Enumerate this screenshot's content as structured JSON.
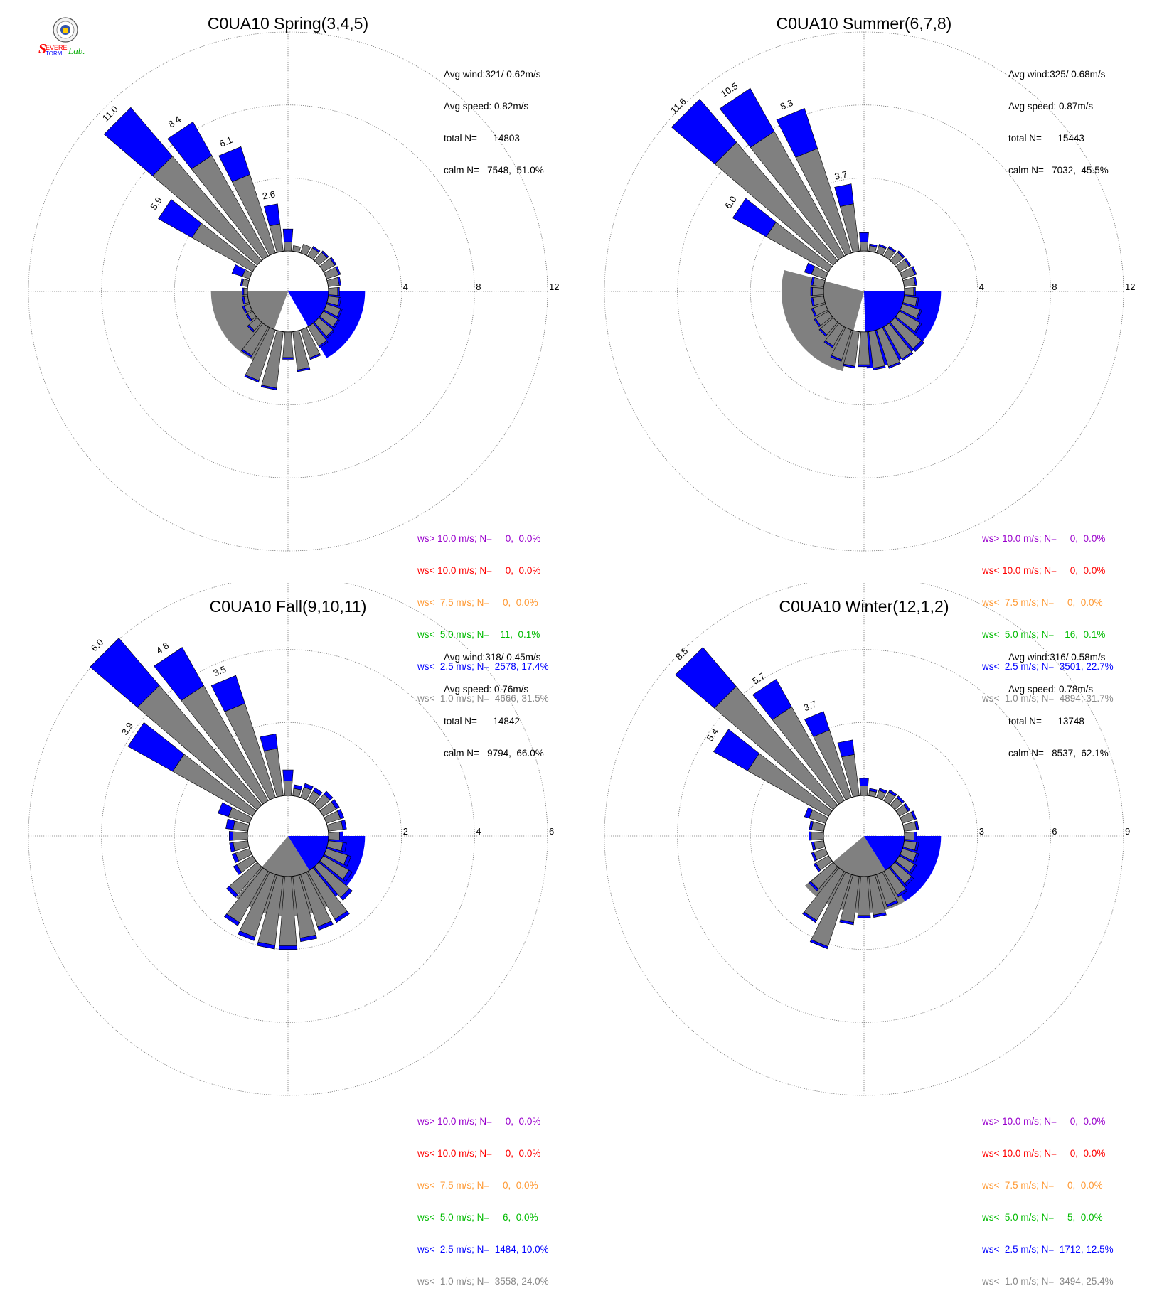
{
  "logo": {
    "icon": "severe-storm-lab-logo",
    "colors": {
      "severe": "#ff0000",
      "storm": "#0000ff",
      "lab": "#00aa00"
    }
  },
  "colors": {
    "calm_bar": "#808080",
    "speed_bar": "#0000ff",
    "ring": "#888888",
    "legend": [
      "#9900cc",
      "#ff0000",
      "#ff9933",
      "#00bb00",
      "#0000ff",
      "#888888"
    ]
  },
  "panels": [
    {
      "title": "C0UA10 Spring(3,4,5)",
      "stats": [
        "Avg wind:321/ 0.62m/s",
        "Avg speed: 0.82m/s",
        "total N=      14803",
        "calm N=   7548,  51.0%"
      ],
      "legend": [
        "ws> 10.0 m/s; N=     0,  0.0%",
        "ws< 10.0 m/s; N=     0,  0.0%",
        "ws<  7.5 m/s; N=     0,  0.0%",
        "ws<  5.0 m/s; N=    11,  0.1%",
        "ws<  2.5 m/s; N=  2578, 17.4%",
        "ws<  1.0 m/s; N=  4666, 31.5%"
      ],
      "chart_data": {
        "type": "wind-rose",
        "rings": [
          4,
          8,
          12
        ],
        "ring_labels": [
          "4",
          "8",
          "12"
        ],
        "rmax": 12,
        "labels": [
          {
            "dir": 315,
            "value": "11.0"
          },
          {
            "dir": 326.25,
            "value": "8.4"
          },
          {
            "dir": 337.5,
            "value": "6.1"
          },
          {
            "dir": 348.75,
            "value": "2.6"
          },
          {
            "dir": 303.75,
            "value": "5.9"
          }
        ],
        "dirs": [
          0,
          11.25,
          22.5,
          33.75,
          45,
          56.25,
          67.5,
          78.75,
          90,
          101.25,
          112.5,
          123.75,
          135,
          146.25,
          157.5,
          168.75,
          180,
          191.25,
          202.5,
          213.75,
          225,
          236.25,
          247.5,
          258.75,
          270,
          281.25,
          292.5,
          303.75,
          315,
          326.25,
          337.5,
          348.75
        ],
        "calm": [
          0.5,
          0.3,
          0.5,
          0.5,
          0.6,
          0.7,
          0.7,
          0.6,
          0.5,
          0.6,
          0.8,
          0.9,
          1.0,
          1.2,
          1.6,
          2.1,
          1.4,
          3.1,
          2.9,
          1.8,
          0.6,
          0.3,
          0.3,
          0.2,
          0.2,
          0.3,
          0.4,
          3.8,
          7.5,
          6.3,
          4.5,
          1.5
        ],
        "total": [
          1.2,
          0.3,
          0.5,
          0.6,
          0.7,
          0.8,
          0.8,
          0.7,
          0.6,
          0.7,
          0.9,
          1.0,
          1.1,
          1.3,
          1.7,
          2.2,
          1.5,
          3.2,
          3.0,
          1.9,
          0.7,
          0.4,
          0.4,
          0.3,
          0.3,
          0.4,
          1.0,
          5.9,
          11.0,
          8.4,
          6.1,
          2.6
        ],
        "calm_sector": {
          "from_deg": 200,
          "to_deg": 270,
          "value": 2.0
        },
        "speed_sector": {
          "from_deg": 90,
          "to_deg": 150,
          "value": 2.0
        }
      }
    },
    {
      "title": "C0UA10 Summer(6,7,8)",
      "stats": [
        "Avg wind:325/ 0.68m/s",
        "Avg speed: 0.87m/s",
        "total N=      15443",
        "calm N=   7032,  45.5%"
      ],
      "legend": [
        "ws> 10.0 m/s; N=     0,  0.0%",
        "ws< 10.0 m/s; N=     0,  0.0%",
        "ws<  7.5 m/s; N=     0,  0.0%",
        "ws<  5.0 m/s; N=    16,  0.1%",
        "ws<  2.5 m/s; N=  3501, 22.7%",
        "ws<  1.0 m/s; N=  4894, 31.7%"
      ],
      "chart_data": {
        "type": "wind-rose",
        "rings": [
          4,
          8,
          12
        ],
        "ring_labels": [
          "4",
          "8",
          "12"
        ],
        "rmax": 12,
        "labels": [
          {
            "dir": 315,
            "value": "11.6"
          },
          {
            "dir": 326.25,
            "value": "10.5"
          },
          {
            "dir": 337.5,
            "value": "8.3"
          },
          {
            "dir": 348.75,
            "value": "3.7"
          },
          {
            "dir": 303.75,
            "value": "6.0"
          }
        ],
        "dirs": [
          0,
          11.25,
          22.5,
          33.75,
          45,
          56.25,
          67.5,
          78.75,
          90,
          101.25,
          112.5,
          123.75,
          135,
          146.25,
          157.5,
          168.75,
          180,
          191.25,
          202.5,
          213.75,
          225,
          236.25,
          247.5,
          258.75,
          270,
          281.25,
          292.5,
          303.75,
          315,
          326.25,
          337.5,
          348.75
        ],
        "calm": [
          0.5,
          0.3,
          0.4,
          0.5,
          0.6,
          0.6,
          0.7,
          0.6,
          0.5,
          0.7,
          1.0,
          1.3,
          1.9,
          2.0,
          2.1,
          2.0,
          1.8,
          1.9,
          1.7,
          1.2,
          0.9,
          0.8,
          0.7,
          0.6,
          0.6,
          0.6,
          0.8,
          3.9,
          8.5,
          7.8,
          6.0,
          2.6
        ],
        "total": [
          1.0,
          0.4,
          0.5,
          0.6,
          0.7,
          0.7,
          0.8,
          0.7,
          0.6,
          0.8,
          1.1,
          1.4,
          2.1,
          2.1,
          2.2,
          2.1,
          1.9,
          2.0,
          1.8,
          1.3,
          1.0,
          0.9,
          0.8,
          0.7,
          0.7,
          0.7,
          1.2,
          6.0,
          11.6,
          10.5,
          8.3,
          3.7
        ],
        "calm_sector": {
          "from_deg": 195,
          "to_deg": 285,
          "value": 2.3
        },
        "speed_sector": {
          "from_deg": 90,
          "to_deg": 178,
          "value": 2.0
        }
      }
    },
    {
      "title": "C0UA10 Fall(9,10,11)",
      "stats": [
        "Avg wind:318/ 0.45m/s",
        "Avg speed: 0.76m/s",
        "total N=      14842",
        "calm N=   9794,  66.0%"
      ],
      "legend": [
        "ws> 10.0 m/s; N=     0,  0.0%",
        "ws< 10.0 m/s; N=     0,  0.0%",
        "ws<  7.5 m/s; N=     0,  0.0%",
        "ws<  5.0 m/s; N=     6,  0.0%",
        "ws<  2.5 m/s; N=  1484, 10.0%",
        "ws<  1.0 m/s; N=  3558, 24.0%"
      ],
      "chart_data": {
        "type": "wind-rose",
        "rings": [
          2,
          4,
          6
        ],
        "ring_labels": [
          "2",
          "4",
          "6"
        ],
        "rmax": 6,
        "labels": [
          {
            "dir": 315,
            "value": "6.0"
          },
          {
            "dir": 326.25,
            "value": "4.8"
          },
          {
            "dir": 337.5,
            "value": "3.5"
          },
          {
            "dir": 303.75,
            "value": "3.9"
          }
        ],
        "dirs": [
          0,
          11.25,
          22.5,
          33.75,
          45,
          56.25,
          67.5,
          78.75,
          90,
          101.25,
          112.5,
          123.75,
          135,
          146.25,
          157.5,
          168.75,
          180,
          191.25,
          202.5,
          213.75,
          225,
          236.25,
          247.5,
          258.75,
          270,
          281.25,
          292.5,
          303.75,
          315,
          326.25,
          337.5,
          348.75
        ],
        "calm": [
          0.4,
          0.2,
          0.3,
          0.3,
          0.4,
          0.4,
          0.4,
          0.4,
          0.3,
          0.4,
          0.6,
          0.8,
          1.1,
          1.5,
          1.5,
          1.7,
          1.9,
          1.9,
          1.8,
          1.6,
          1.0,
          0.5,
          0.4,
          0.4,
          0.4,
          0.4,
          0.6,
          2.5,
          4.3,
          3.6,
          2.7,
          1.3
        ],
        "total": [
          0.7,
          0.3,
          0.4,
          0.4,
          0.5,
          0.5,
          0.5,
          0.5,
          0.4,
          0.5,
          0.7,
          0.9,
          1.2,
          1.6,
          1.6,
          1.8,
          2.0,
          2.0,
          1.9,
          1.7,
          1.1,
          0.6,
          0.5,
          0.5,
          0.5,
          0.6,
          0.9,
          3.9,
          6.0,
          4.8,
          3.5,
          1.7
        ],
        "calm_sector": {
          "from_deg": 148,
          "to_deg": 220,
          "value": 1.1
        },
        "speed_sector": {
          "from_deg": 90,
          "to_deg": 148,
          "value": 1.0
        }
      }
    },
    {
      "title": "C0UA10 Winter(12,1,2)",
      "stats": [
        "Avg wind:316/ 0.58m/s",
        "Avg speed: 0.78m/s",
        "total N=      13748",
        "calm N=   8537,  62.1%"
      ],
      "legend": [
        "ws> 10.0 m/s; N=     0,  0.0%",
        "ws< 10.0 m/s; N=     0,  0.0%",
        "ws<  7.5 m/s; N=     0,  0.0%",
        "ws<  5.0 m/s; N=     5,  0.0%",
        "ws<  2.5 m/s; N=  1712, 12.5%",
        "ws<  1.0 m/s; N=  3494, 25.4%"
      ],
      "chart_data": {
        "type": "wind-rose",
        "rings": [
          3,
          6,
          9
        ],
        "ring_labels": [
          "3",
          "6",
          "9"
        ],
        "rmax": 9,
        "labels": [
          {
            "dir": 315,
            "value": "8.5"
          },
          {
            "dir": 326.25,
            "value": "5.7"
          },
          {
            "dir": 337.5,
            "value": "3.7"
          },
          {
            "dir": 303.75,
            "value": "5.4"
          }
        ],
        "dirs": [
          0,
          11.25,
          22.5,
          33.75,
          45,
          56.25,
          67.5,
          78.75,
          90,
          101.25,
          112.5,
          123.75,
          135,
          146.25,
          157.5,
          168.75,
          180,
          191.25,
          202.5,
          213.75,
          225,
          236.25,
          247.5,
          258.75,
          270,
          281.25,
          292.5,
          303.75,
          315,
          326.25,
          337.5,
          348.75
        ],
        "calm": [
          0.4,
          0.2,
          0.3,
          0.4,
          0.4,
          0.4,
          0.5,
          0.5,
          0.4,
          0.5,
          0.6,
          0.7,
          0.9,
          1.1,
          1.3,
          1.6,
          1.6,
          1.9,
          3.1,
          2.3,
          1.2,
          0.6,
          0.5,
          0.4,
          0.5,
          0.5,
          0.7,
          3.8,
          6.4,
          4.4,
          2.9,
          1.7
        ],
        "total": [
          0.7,
          0.3,
          0.4,
          0.5,
          0.5,
          0.5,
          0.6,
          0.6,
          0.5,
          0.6,
          0.7,
          0.8,
          1.0,
          1.2,
          1.4,
          1.7,
          1.7,
          2.0,
          3.2,
          2.4,
          1.3,
          0.7,
          0.6,
          0.5,
          0.6,
          0.6,
          0.9,
          5.4,
          8.5,
          5.7,
          3.7,
          2.3
        ],
        "calm_sector": {
          "from_deg": 148,
          "to_deg": 230,
          "value": 1.5
        },
        "speed_sector": {
          "from_deg": 90,
          "to_deg": 148,
          "value": 1.5
        }
      }
    }
  ]
}
